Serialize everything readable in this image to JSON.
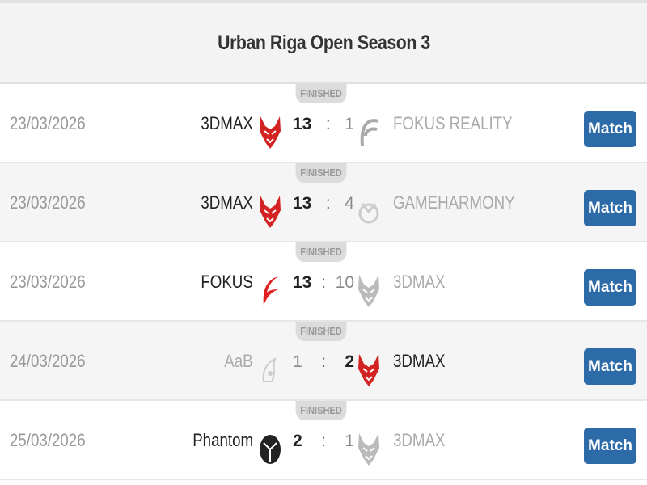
{
  "title": "Urban Riga Open Season 3",
  "button_label": "Match",
  "status": "FINISHED",
  "matches": [
    {
      "date": "23/03/2026",
      "home": "3DMAX",
      "home_score": "13",
      "away_score": "1",
      "away": "FOKUS REALITY",
      "winner": "home",
      "home_logo": "red-devil-logo",
      "away_logo": "fokus-f-logo"
    },
    {
      "date": "23/03/2026",
      "home": "3DMAX",
      "home_score": "13",
      "away_score": "4",
      "away": "GAMEHARMONY",
      "winner": "home",
      "home_logo": "red-devil-logo",
      "away_logo": "gameharmony-logo"
    },
    {
      "date": "23/03/2026",
      "home": "FOKUS",
      "home_score": "13",
      "away_score": "10",
      "away": "3DMAX",
      "winner": "home",
      "home_logo": "fokus-red-f-logo",
      "away_logo": "gray-devil-logo"
    },
    {
      "date": "24/03/2026",
      "home": "AaB",
      "home_score": "1",
      "away_score": "2",
      "away": "3DMAX",
      "winner": "away",
      "home_logo": "aab-logo",
      "away_logo": "red-devil-logo"
    },
    {
      "date": "25/03/2026",
      "home": "Phantom",
      "home_score": "2",
      "away_score": "1",
      "away": "3DMAX",
      "winner": "home",
      "home_logo": "phantom-logo",
      "away_logo": "gray-devil-logo"
    }
  ],
  "colors": {
    "accent": "#2c6aa8",
    "devil_red": "#d32222"
  }
}
